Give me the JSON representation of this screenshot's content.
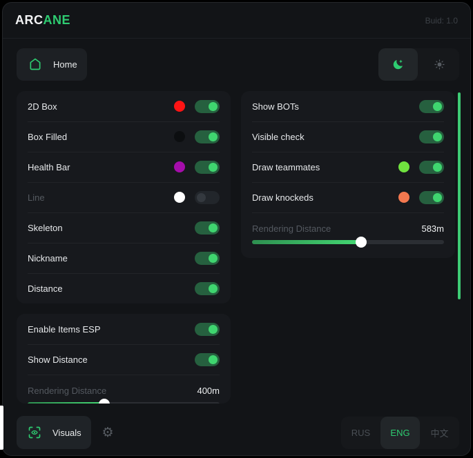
{
  "header": {
    "brand_primary": "ARC",
    "brand_accent": "ANE",
    "build": "Buid: 1.0"
  },
  "nav": {
    "home_label": "Home"
  },
  "colors": {
    "accent": "#2ecc71",
    "toggle_on_track": "#26603f",
    "toggle_on_knob": "#3fd56f",
    "scrollbar": "#3ecb74",
    "slider_fill_start": "#2e8f50",
    "slider_fill_end": "#44d873"
  },
  "panels": {
    "esp": {
      "rows": [
        {
          "label": "2D Box",
          "dot": "#ff1414",
          "on": true,
          "muted": false
        },
        {
          "label": "Box Filled",
          "dot": "#0c0e10",
          "on": true,
          "muted": false
        },
        {
          "label": "Health Bar",
          "dot": "#a50dab",
          "on": true,
          "muted": false
        },
        {
          "label": "Line",
          "dot": "#ffffff",
          "on": false,
          "muted": true
        },
        {
          "label": "Skeleton",
          "dot": null,
          "on": true,
          "muted": false
        },
        {
          "label": "Nickname",
          "dot": null,
          "on": true,
          "muted": false
        },
        {
          "label": "Distance",
          "dot": null,
          "on": true,
          "muted": false
        }
      ]
    },
    "items": {
      "rows": [
        {
          "label": "Enable Items ESP",
          "dot": null,
          "on": true,
          "muted": false
        },
        {
          "label": "Show Distance",
          "dot": null,
          "on": true,
          "muted": false
        }
      ],
      "slider": {
        "label": "Rendering Distance",
        "value": "400m",
        "percent": 40
      }
    },
    "right": {
      "rows": [
        {
          "label": "Show BOTs",
          "dot": null,
          "on": true,
          "muted": false
        },
        {
          "label": "Visible check",
          "dot": null,
          "on": true,
          "muted": false
        },
        {
          "label": "Draw teammates",
          "dot": "#70e23f",
          "on": true,
          "muted": false
        },
        {
          "label": "Draw knockeds",
          "dot": "#f3784f",
          "on": true,
          "muted": false
        }
      ],
      "slider": {
        "label": "Rendering Distance",
        "value": "583m",
        "percent": 57
      }
    }
  },
  "footer": {
    "visuals_label": "Visuals",
    "languages": [
      {
        "label": "RUS",
        "active": false
      },
      {
        "label": "ENG",
        "active": true
      },
      {
        "label": "中文",
        "active": false
      }
    ]
  }
}
